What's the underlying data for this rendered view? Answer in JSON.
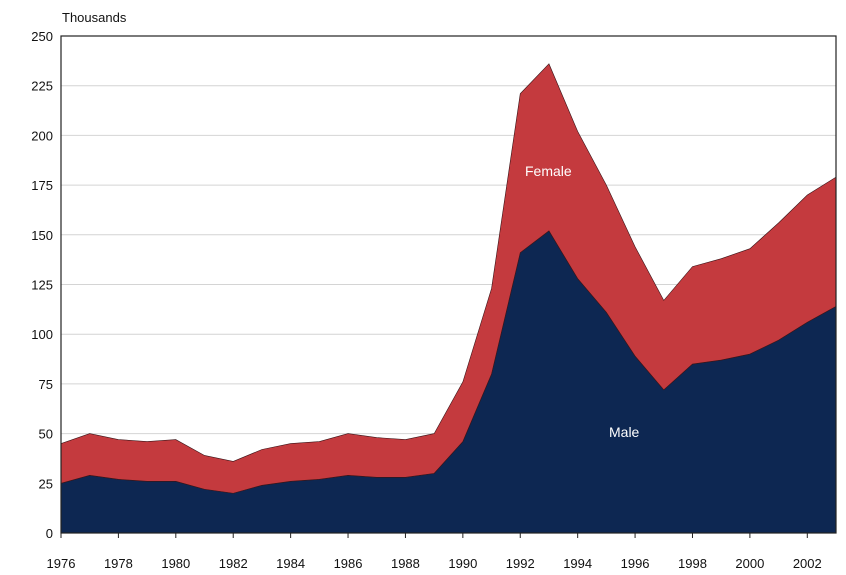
{
  "chart_data": {
    "type": "area",
    "stacked": true,
    "title": "",
    "xlabel": "",
    "ylabel": "Thousands",
    "xlim": [
      1976,
      2003
    ],
    "ylim": [
      0,
      250
    ],
    "x_ticks": [
      "1976",
      "1978",
      "1980",
      "1982",
      "1984",
      "1986",
      "1988",
      "1990",
      "1992",
      "1994",
      "1996",
      "1998",
      "2000",
      "2002"
    ],
    "y_ticks": [
      "0",
      "25",
      "50",
      "75",
      "100",
      "125",
      "150",
      "175",
      "200",
      "225",
      "250"
    ],
    "grid": true,
    "legend": "inline labels",
    "x": [
      1976,
      1977,
      1978,
      1979,
      1980,
      1981,
      1982,
      1983,
      1984,
      1985,
      1986,
      1987,
      1988,
      1989,
      1990,
      1991,
      1992,
      1993,
      1994,
      1995,
      1996,
      1997,
      1998,
      1999,
      2000,
      2001,
      2002,
      2003
    ],
    "series": [
      {
        "name": "Male",
        "color": "#0d2752",
        "values": [
          25,
          29,
          27,
          26,
          26,
          22,
          20,
          24,
          26,
          27,
          29,
          28,
          28,
          30,
          46,
          80,
          141,
          152,
          128,
          111,
          89,
          72,
          85,
          87,
          90,
          97,
          106,
          114
        ]
      },
      {
        "name": "Female",
        "color": "#c43a3e",
        "values": [
          20,
          21,
          20,
          20,
          21,
          17,
          16,
          18,
          19,
          19,
          21,
          20,
          19,
          20,
          30,
          43,
          80,
          84,
          74,
          64,
          55,
          45,
          49,
          51,
          53,
          59,
          64,
          65
        ]
      }
    ],
    "colors": {
      "plot_background": "#ffffff",
      "gridline": "#d4d4d4",
      "axis": "#222222"
    }
  }
}
